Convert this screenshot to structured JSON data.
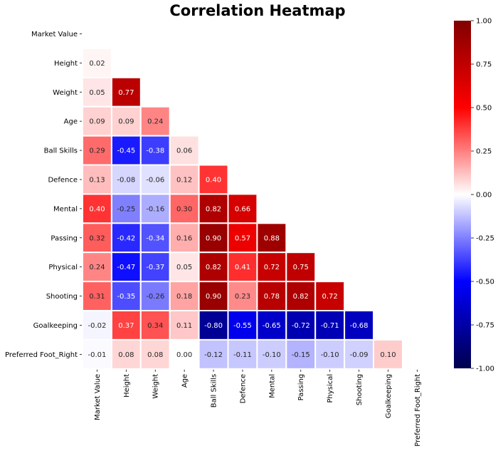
{
  "chart_data": {
    "type": "heatmap",
    "title": "Correlation Heatmap",
    "labels": [
      "Market Value",
      "Height",
      "Weight",
      "Age",
      "Ball Skills",
      "Defence",
      "Mental",
      "Passing",
      "Physical",
      "Shooting",
      "Goalkeeping",
      "Preferred Foot_Right"
    ],
    "mask": "upper-triangle-including-diagonal",
    "rows": [
      [],
      [
        0.02
      ],
      [
        0.05,
        0.77
      ],
      [
        0.09,
        0.09,
        0.24
      ],
      [
        0.29,
        -0.45,
        -0.38,
        0.06
      ],
      [
        0.13,
        -0.08,
        -0.06,
        0.12,
        0.4
      ],
      [
        0.4,
        -0.25,
        -0.16,
        0.3,
        0.82,
        0.66
      ],
      [
        0.32,
        -0.42,
        -0.34,
        0.16,
        0.9,
        0.57,
        0.88
      ],
      [
        0.24,
        -0.47,
        -0.37,
        0.05,
        0.82,
        0.41,
        0.72,
        0.75
      ],
      [
        0.31,
        -0.35,
        -0.26,
        0.18,
        0.9,
        0.23,
        0.78,
        0.82,
        0.72
      ],
      [
        -0.02,
        0.37,
        0.34,
        0.11,
        -0.8,
        -0.55,
        -0.65,
        -0.72,
        -0.71,
        -0.68
      ],
      [
        -0.01,
        0.08,
        0.08,
        0.0,
        -0.12,
        -0.11,
        -0.1,
        -0.15,
        -0.1,
        -0.09,
        0.1
      ]
    ],
    "colormap": "seismic",
    "vmin": -1.0,
    "vmax": 1.0,
    "colorbar_ticks": [
      "1.00",
      "0.75",
      "0.50",
      "0.25",
      "0.00",
      "-0.25",
      "-0.50",
      "-0.75",
      "-1.00"
    ],
    "value_format": "2 decimals"
  }
}
